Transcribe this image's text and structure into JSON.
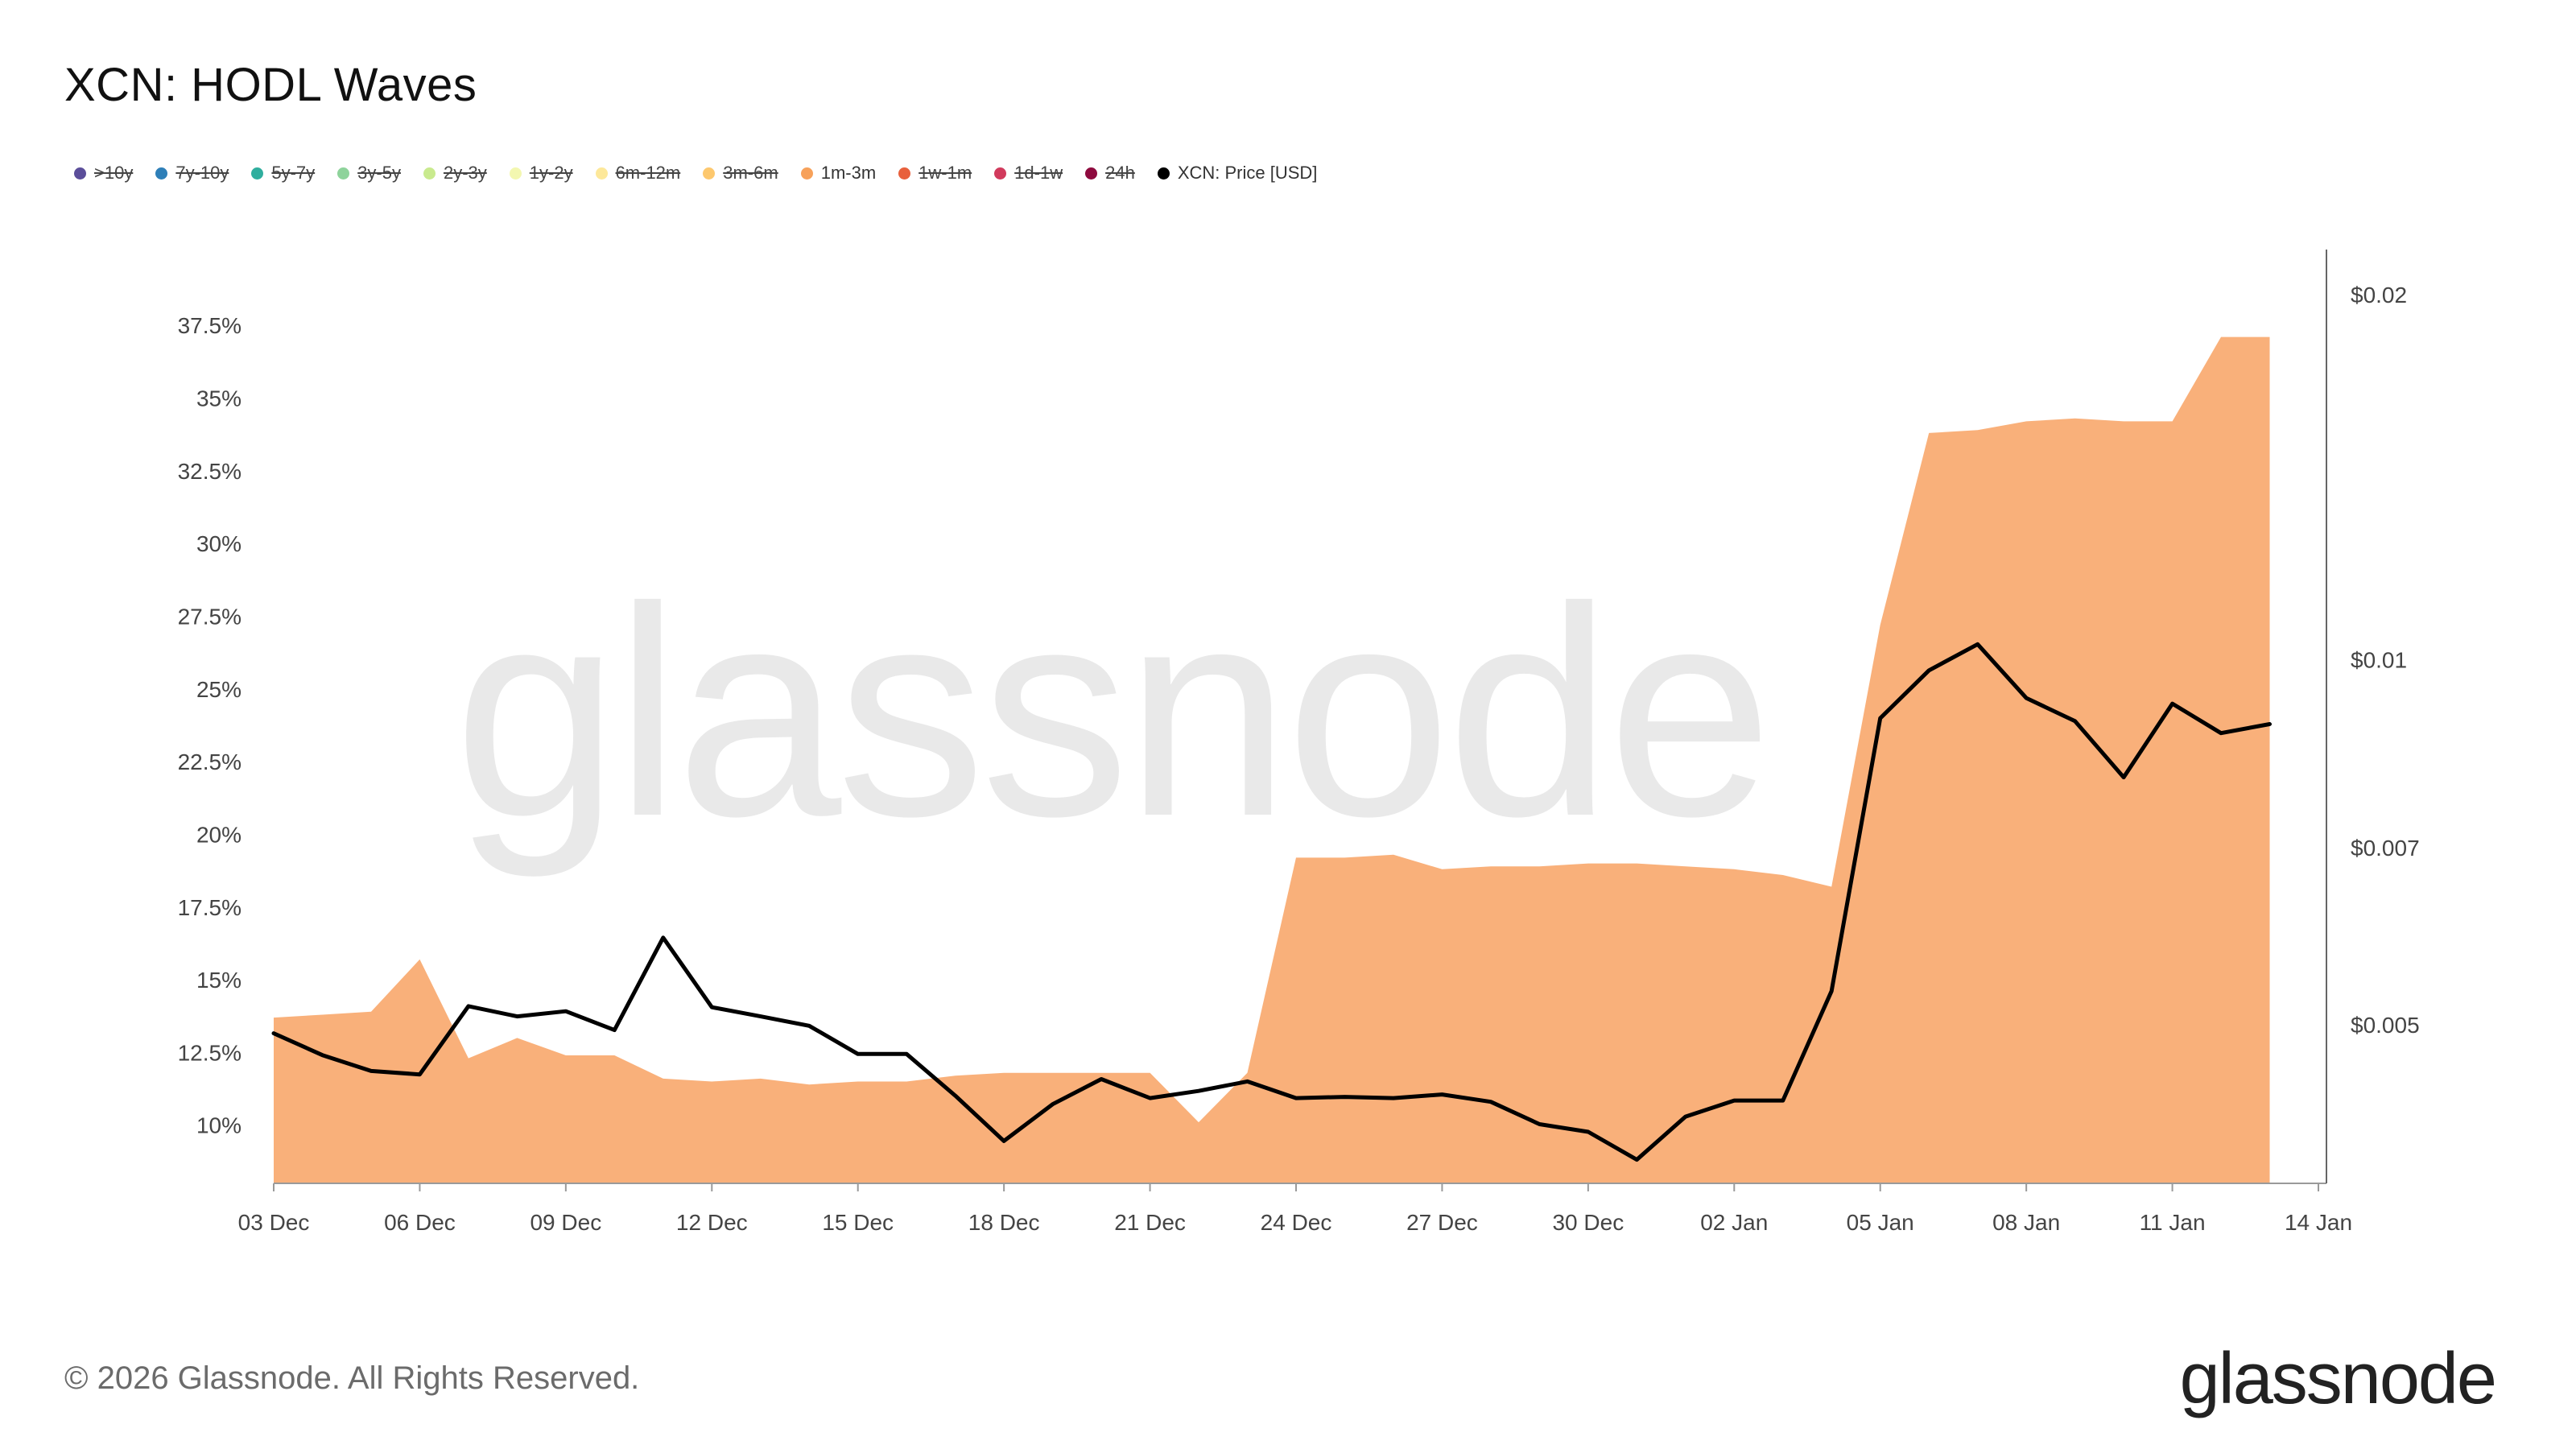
{
  "title": "XCN: HODL Waves",
  "legend": [
    {
      "label": ">10y",
      "color": "#5b4e9a",
      "enabled": false
    },
    {
      "label": "7y-10y",
      "color": "#2e7fb8",
      "enabled": false
    },
    {
      "label": "5y-7y",
      "color": "#2fae9e",
      "enabled": false
    },
    {
      "label": "3y-5y",
      "color": "#8ed39b",
      "enabled": false
    },
    {
      "label": "2y-3y",
      "color": "#c9ea8e",
      "enabled": false
    },
    {
      "label": "1y-2y",
      "color": "#f3f7b0",
      "enabled": false
    },
    {
      "label": "6m-12m",
      "color": "#fde89a",
      "enabled": false
    },
    {
      "label": "3m-6m",
      "color": "#fdc86e",
      "enabled": false
    },
    {
      "label": "1m-3m",
      "color": "#f7a15a",
      "enabled": true
    },
    {
      "label": "1w-1m",
      "color": "#e8603c",
      "enabled": false
    },
    {
      "label": "1d-1w",
      "color": "#d13a5c",
      "enabled": false
    },
    {
      "label": "24h",
      "color": "#8e0a3e",
      "enabled": false
    },
    {
      "label": "XCN: Price [USD]",
      "color": "#000000",
      "enabled": true
    }
  ],
  "watermark": "glassnode",
  "footer": {
    "copyright": "© 2026 Glassnode. All Rights Reserved.",
    "brand": "glassnode"
  },
  "chart_data": {
    "type": "area",
    "x_ticks": [
      "03 Dec",
      "06 Dec",
      "09 Dec",
      "12 Dec",
      "15 Dec",
      "18 Dec",
      "21 Dec",
      "24 Dec",
      "27 Dec",
      "30 Dec",
      "02 Jan",
      "05 Jan",
      "08 Jan",
      "11 Jan",
      "14 Jan"
    ],
    "y_left_ticks": [
      "10%",
      "12.5%",
      "15%",
      "17.5%",
      "20%",
      "22.5%",
      "25%",
      "27.5%",
      "30%",
      "32.5%",
      "35%",
      "37.5%"
    ],
    "y_left_values": [
      10,
      12.5,
      15,
      17.5,
      20,
      22.5,
      25,
      27.5,
      30,
      32.5,
      35,
      37.5
    ],
    "y_right_ticks": [
      "$0.005",
      "$0.007",
      "$0.01",
      "$0.02"
    ],
    "y_right_values": [
      0.005,
      0.007,
      0.01,
      0.02
    ],
    "y_right_scale": "log",
    "ylim_left": [
      8,
      39
    ],
    "ylim_right": [
      0.0037,
      0.0205
    ],
    "x_start": "2025-12-03",
    "x_end": "2026-01-14",
    "series": [
      {
        "name": "1m-3m",
        "kind": "area",
        "color": "#f9b07a",
        "x": [
          "2025-12-03",
          "2025-12-04",
          "2025-12-05",
          "2025-12-06",
          "2025-12-07",
          "2025-12-08",
          "2025-12-09",
          "2025-12-10",
          "2025-12-11",
          "2025-12-12",
          "2025-12-13",
          "2025-12-14",
          "2025-12-15",
          "2025-12-16",
          "2025-12-17",
          "2025-12-18",
          "2025-12-19",
          "2025-12-20",
          "2025-12-21",
          "2025-12-22",
          "2025-12-23",
          "2025-12-24",
          "2025-12-25",
          "2025-12-26",
          "2025-12-27",
          "2025-12-28",
          "2025-12-29",
          "2025-12-30",
          "2025-12-31",
          "2026-01-01",
          "2026-01-02",
          "2026-01-03",
          "2026-01-04",
          "2026-01-05",
          "2026-01-06",
          "2026-01-07",
          "2026-01-08",
          "2026-01-09",
          "2026-01-10",
          "2026-01-11",
          "2026-01-12",
          "2026-01-13"
        ],
        "values": [
          13.7,
          13.8,
          13.9,
          15.7,
          12.3,
          13.0,
          12.4,
          12.4,
          11.6,
          11.5,
          11.6,
          11.4,
          11.5,
          11.5,
          11.7,
          11.8,
          11.8,
          11.8,
          11.8,
          10.1,
          11.8,
          19.2,
          19.2,
          19.3,
          18.8,
          18.9,
          18.9,
          19.0,
          19.0,
          18.9,
          18.8,
          18.6,
          18.2,
          27.2,
          33.8,
          33.9,
          34.2,
          34.3,
          34.2,
          34.2,
          37.1,
          37.1
        ],
        "last_step": {
          "x": "2026-01-13",
          "value": 37.1
        }
      },
      {
        "name": "XCN: Price [USD]",
        "kind": "line",
        "color": "#000000",
        "x": [
          "2025-12-03",
          "2025-12-04",
          "2025-12-05",
          "2025-12-06",
          "2025-12-07",
          "2025-12-08",
          "2025-12-09",
          "2025-12-10",
          "2025-12-11",
          "2025-12-12",
          "2025-12-13",
          "2025-12-14",
          "2025-12-15",
          "2025-12-16",
          "2025-12-17",
          "2025-12-18",
          "2025-12-19",
          "2025-12-20",
          "2025-12-21",
          "2025-12-22",
          "2025-12-23",
          "2025-12-24",
          "2025-12-25",
          "2025-12-26",
          "2025-12-27",
          "2025-12-28",
          "2025-12-29",
          "2025-12-30",
          "2025-12-31",
          "2026-01-01",
          "2026-01-02",
          "2026-01-03",
          "2026-01-04",
          "2026-01-05",
          "2026-01-06",
          "2026-01-07",
          "2026-01-08",
          "2026-01-09",
          "2026-01-10",
          "2026-01-11",
          "2026-01-12",
          "2026-01-13"
        ],
        "values": [
          0.00492,
          0.00472,
          0.00458,
          0.00455,
          0.00518,
          0.00508,
          0.00513,
          0.00495,
          0.0059,
          0.00517,
          0.00508,
          0.00499,
          0.00473,
          0.00473,
          0.00437,
          0.00401,
          0.0043,
          0.00451,
          0.00435,
          0.00441,
          0.00449,
          0.00435,
          0.00436,
          0.00435,
          0.00438,
          0.00432,
          0.00414,
          0.00408,
          0.00387,
          0.0042,
          0.00433,
          0.00433,
          0.00533,
          0.00895,
          0.0098,
          0.0103,
          0.0093,
          0.0089,
          0.008,
          0.0092,
          0.0087,
          0.00885
        ]
      }
    ]
  }
}
